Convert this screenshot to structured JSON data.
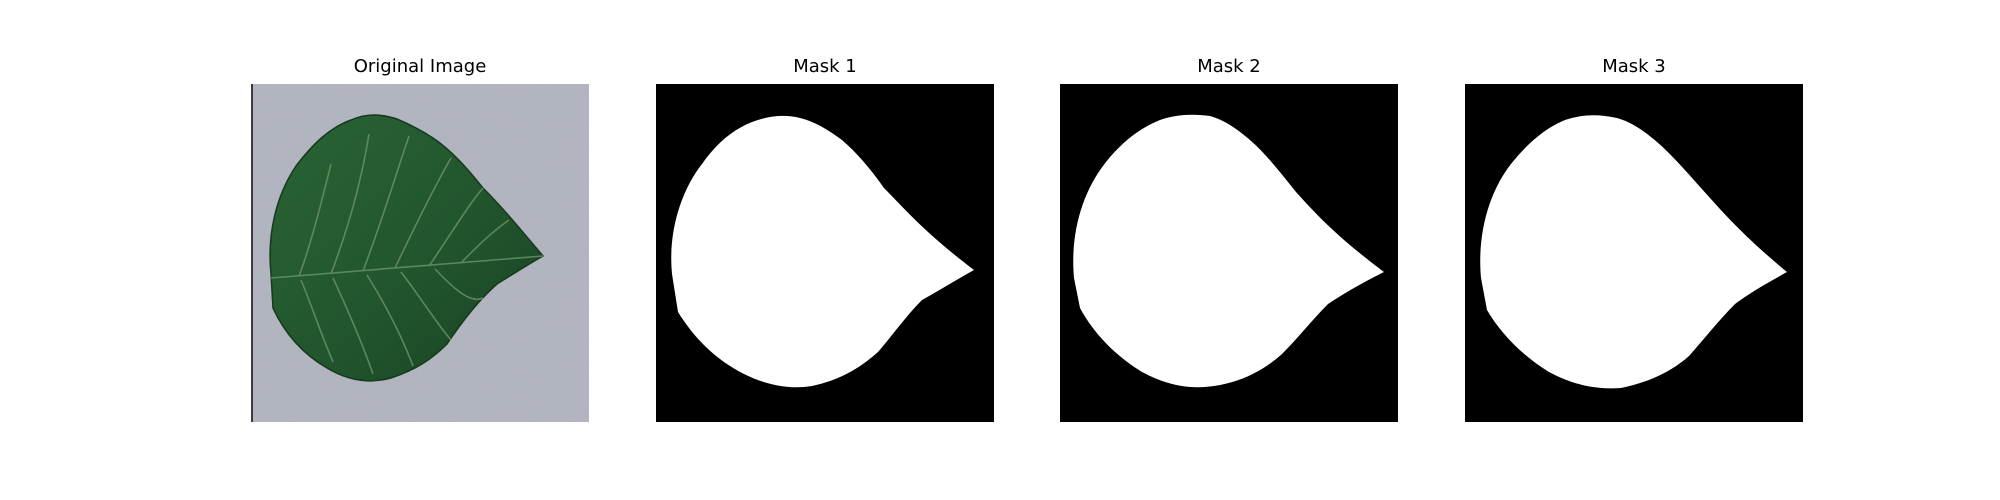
{
  "panels": [
    {
      "title": "Original Image",
      "kind": "photo"
    },
    {
      "title": "Mask 1",
      "kind": "mask"
    },
    {
      "title": "Mask 2",
      "kind": "mask"
    },
    {
      "title": "Mask 3",
      "kind": "mask"
    }
  ],
  "colors": {
    "background": "#ffffff",
    "photo_background": "#b9bcc7",
    "leaf_dark": "#1f4d2a",
    "leaf_mid": "#2f6b3a",
    "vein": "#7ea27c",
    "mask_background": "#000000",
    "mask_foreground": "#ffffff"
  }
}
